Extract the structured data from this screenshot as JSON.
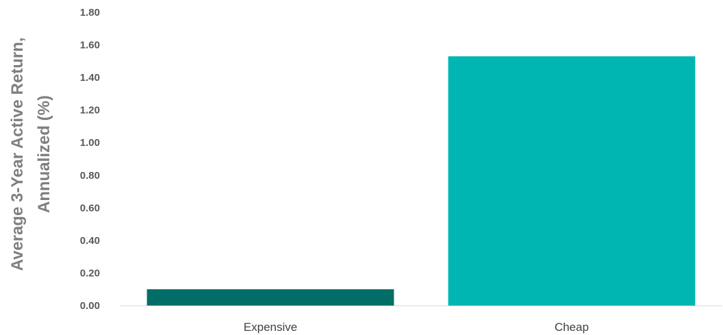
{
  "chart_data": {
    "type": "bar",
    "categories": [
      "Expensive",
      "Cheap"
    ],
    "values": [
      0.1,
      1.53
    ],
    "colors": [
      "#006e67",
      "#00b6b3"
    ],
    "title": "",
    "xlabel": "",
    "ylabel_lines": [
      "Average 3-Year Active Return,",
      "Annualized (%)"
    ],
    "ylim": [
      0,
      1.8
    ],
    "yticks": [
      "0.00",
      "0.20",
      "0.40",
      "0.60",
      "0.80",
      "1.00",
      "1.20",
      "1.40",
      "1.60",
      "1.80"
    ],
    "grid": false,
    "legend": "none"
  }
}
